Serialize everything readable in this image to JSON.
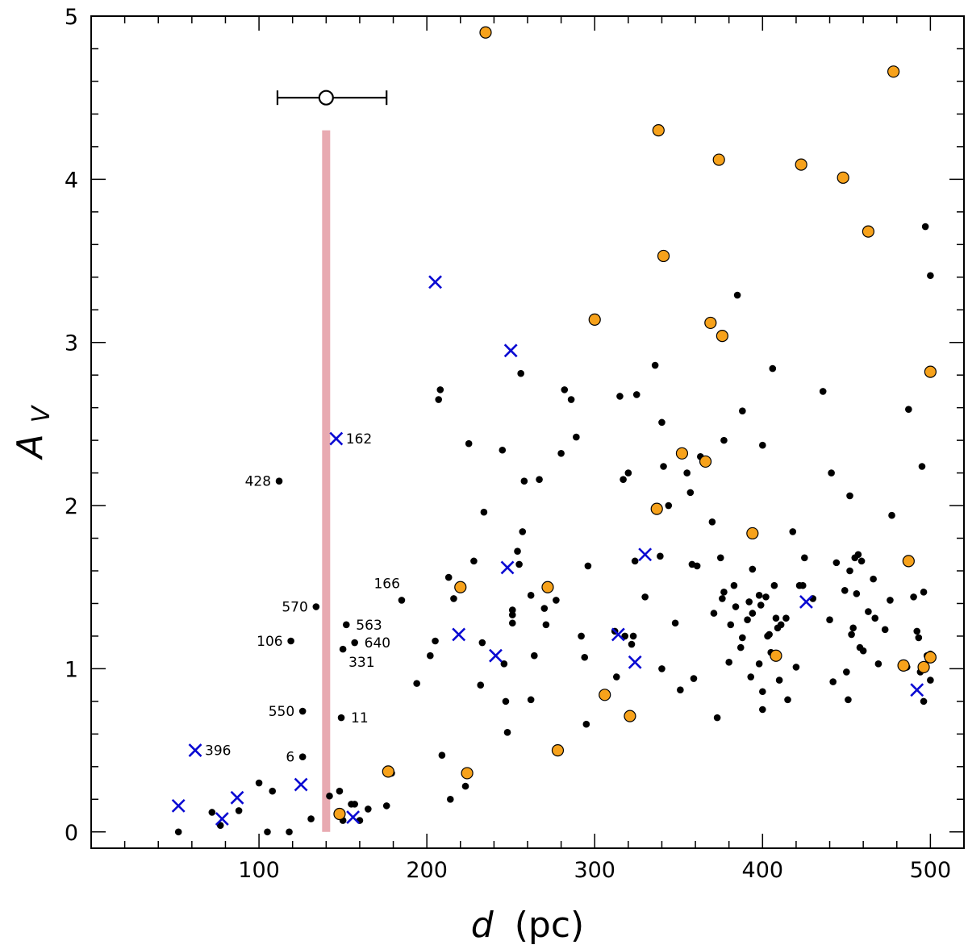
{
  "chart_data": {
    "type": "scatter",
    "title": "",
    "xlabel": {
      "symbol": "d",
      "unit": "(pc)"
    },
    "ylabel": {
      "symbol": "A",
      "subscript": "V"
    },
    "xlim": [
      0,
      520
    ],
    "ylim": [
      -0.1,
      5
    ],
    "xticks": [
      100,
      200,
      300,
      400,
      500
    ],
    "yticks": [
      0,
      1,
      2,
      3,
      4,
      5
    ],
    "xtick_labels": [
      "100",
      "200",
      "300",
      "400",
      "500"
    ],
    "ytick_labels": [
      "0",
      "1",
      "2",
      "3",
      "4",
      "5"
    ],
    "x_minor_step": 20,
    "y_minor_step": 0.2,
    "colors": {
      "black": "#000000",
      "orange": "#f7a21b",
      "blue": "#0a0ad2",
      "band": "#e8aab1"
    },
    "band": {
      "x": 140,
      "y_range": [
        0,
        4.3
      ]
    },
    "reference_point": {
      "x": 140,
      "y": 4.5,
      "xerr": [
        111,
        176
      ]
    },
    "series": [
      {
        "name": "black-dots",
        "marker": "dot",
        "points": [
          [
            52,
            0.0
          ],
          [
            72,
            0.12
          ],
          [
            77,
            0.04
          ],
          [
            88,
            0.13
          ],
          [
            100,
            0.3
          ],
          [
            105,
            0.0
          ],
          [
            108,
            0.25
          ],
          [
            112,
            2.15
          ],
          [
            118,
            0.0
          ],
          [
            119,
            1.17
          ],
          [
            126,
            0.74
          ],
          [
            126,
            0.46
          ],
          [
            131,
            0.08
          ],
          [
            134,
            1.38
          ],
          [
            142,
            0.22
          ],
          [
            148,
            0.25
          ],
          [
            149,
            0.7
          ],
          [
            150,
            0.07
          ],
          [
            150,
            1.12
          ],
          [
            152,
            1.27
          ],
          [
            155,
            0.17
          ],
          [
            157,
            1.16
          ],
          [
            157,
            0.17
          ],
          [
            160,
            0.07
          ],
          [
            165,
            0.14
          ],
          [
            176,
            0.16
          ],
          [
            179,
            0.36
          ],
          [
            185,
            1.42
          ],
          [
            194,
            0.91
          ],
          [
            202,
            1.08
          ],
          [
            205,
            1.17
          ],
          [
            207,
            2.65
          ],
          [
            208,
            2.71
          ],
          [
            209,
            0.47
          ],
          [
            213,
            1.56
          ],
          [
            214,
            0.2
          ],
          [
            216,
            1.43
          ],
          [
            223,
            0.28
          ],
          [
            225,
            2.38
          ],
          [
            228,
            1.66
          ],
          [
            232,
            0.9
          ],
          [
            233,
            1.16
          ],
          [
            234,
            1.96
          ],
          [
            245,
            2.34
          ],
          [
            246,
            1.03
          ],
          [
            247,
            0.8
          ],
          [
            248,
            0.61
          ],
          [
            251,
            1.33
          ],
          [
            251,
            1.36
          ],
          [
            251,
            1.28
          ],
          [
            254,
            1.72
          ],
          [
            255,
            1.64
          ],
          [
            256,
            2.81
          ],
          [
            257,
            1.84
          ],
          [
            258,
            2.15
          ],
          [
            262,
            0.81
          ],
          [
            262,
            1.45
          ],
          [
            264,
            1.08
          ],
          [
            267,
            2.16
          ],
          [
            270,
            1.37
          ],
          [
            271,
            1.27
          ],
          [
            277,
            1.42
          ],
          [
            280,
            2.32
          ],
          [
            282,
            2.71
          ],
          [
            286,
            2.65
          ],
          [
            289,
            2.42
          ],
          [
            292,
            1.2
          ],
          [
            294,
            1.07
          ],
          [
            295,
            0.66
          ],
          [
            296,
            1.63
          ],
          [
            312,
            1.23
          ],
          [
            313,
            0.95
          ],
          [
            315,
            2.67
          ],
          [
            317,
            2.16
          ],
          [
            318,
            1.2
          ],
          [
            320,
            2.2
          ],
          [
            322,
            1.15
          ],
          [
            323,
            1.2
          ],
          [
            324,
            1.66
          ],
          [
            325,
            2.68
          ],
          [
            330,
            1.44
          ],
          [
            336,
            2.86
          ],
          [
            339,
            1.69
          ],
          [
            340,
            2.51
          ],
          [
            340,
            1.0
          ],
          [
            341,
            2.24
          ],
          [
            344,
            2.0
          ],
          [
            348,
            1.28
          ],
          [
            351,
            0.87
          ],
          [
            355,
            2.2
          ],
          [
            357,
            2.08
          ],
          [
            358,
            1.64
          ],
          [
            359,
            0.94
          ],
          [
            361,
            1.63
          ],
          [
            363,
            2.3
          ],
          [
            370,
            1.9
          ],
          [
            371,
            1.34
          ],
          [
            373,
            0.7
          ],
          [
            375,
            1.68
          ],
          [
            376,
            1.43
          ],
          [
            377,
            1.47
          ],
          [
            377,
            2.4
          ],
          [
            380,
            1.04
          ],
          [
            381,
            1.27
          ],
          [
            383,
            1.51
          ],
          [
            384,
            1.38
          ],
          [
            385,
            3.29
          ],
          [
            387,
            1.13
          ],
          [
            388,
            1.19
          ],
          [
            388,
            2.58
          ],
          [
            391,
            1.3
          ],
          [
            392,
            1.41
          ],
          [
            393,
            0.95
          ],
          [
            394,
            1.61
          ],
          [
            394,
            1.34
          ],
          [
            398,
            1.45
          ],
          [
            398,
            1.03
          ],
          [
            399,
            1.39
          ],
          [
            400,
            0.75
          ],
          [
            400,
            2.37
          ],
          [
            400,
            0.86
          ],
          [
            402,
            1.44
          ],
          [
            403,
            1.2
          ],
          [
            404,
            1.21
          ],
          [
            405,
            1.1
          ],
          [
            406,
            2.84
          ],
          [
            407,
            1.51
          ],
          [
            408,
            1.31
          ],
          [
            409,
            1.25
          ],
          [
            410,
            0.93
          ],
          [
            411,
            1.27
          ],
          [
            414,
            1.31
          ],
          [
            415,
            0.81
          ],
          [
            418,
            1.84
          ],
          [
            420,
            1.01
          ],
          [
            422,
            1.51
          ],
          [
            424,
            1.51
          ],
          [
            425,
            1.68
          ],
          [
            430,
            1.43
          ],
          [
            436,
            2.7
          ],
          [
            440,
            1.3
          ],
          [
            441,
            2.2
          ],
          [
            442,
            0.92
          ],
          [
            444,
            1.65
          ],
          [
            449,
            1.48
          ],
          [
            450,
            0.98
          ],
          [
            451,
            0.81
          ],
          [
            452,
            2.06
          ],
          [
            452,
            1.6
          ],
          [
            453,
            1.21
          ],
          [
            454,
            1.25
          ],
          [
            455,
            1.68
          ],
          [
            456,
            1.46
          ],
          [
            457,
            1.7
          ],
          [
            458,
            1.13
          ],
          [
            459,
            1.66
          ],
          [
            460,
            1.11
          ],
          [
            463,
            1.35
          ],
          [
            466,
            1.55
          ],
          [
            467,
            1.31
          ],
          [
            469,
            1.03
          ],
          [
            473,
            1.24
          ],
          [
            476,
            1.42
          ],
          [
            477,
            1.94
          ],
          [
            484,
            1.01
          ],
          [
            486,
            1.01
          ],
          [
            487,
            2.59
          ],
          [
            490,
            1.44
          ],
          [
            492,
            1.23
          ],
          [
            493,
            1.19
          ],
          [
            494,
            0.98
          ],
          [
            495,
            2.24
          ],
          [
            496,
            1.47
          ],
          [
            496,
            0.8
          ],
          [
            497,
            3.71
          ],
          [
            498,
            1.08
          ],
          [
            500,
            1.09
          ],
          [
            500,
            3.41
          ],
          [
            500,
            0.93
          ]
        ]
      },
      {
        "name": "orange-circles",
        "marker": "circle",
        "points": [
          [
            148,
            0.11
          ],
          [
            177,
            0.37
          ],
          [
            220,
            1.5
          ],
          [
            224,
            0.36
          ],
          [
            235,
            4.9
          ],
          [
            272,
            1.5
          ],
          [
            278,
            0.5
          ],
          [
            300,
            3.14
          ],
          [
            306,
            0.84
          ],
          [
            321,
            0.71
          ],
          [
            337,
            1.98
          ],
          [
            338,
            4.3
          ],
          [
            341,
            3.53
          ],
          [
            352,
            2.32
          ],
          [
            366,
            2.27
          ],
          [
            369,
            3.12
          ],
          [
            374,
            4.12
          ],
          [
            376,
            3.04
          ],
          [
            394,
            1.83
          ],
          [
            408,
            1.08
          ],
          [
            423,
            4.09
          ],
          [
            448,
            4.01
          ],
          [
            463,
            3.68
          ],
          [
            478,
            4.66
          ],
          [
            484,
            1.02
          ],
          [
            487,
            1.66
          ],
          [
            496,
            1.01
          ],
          [
            500,
            2.82
          ],
          [
            500,
            1.07
          ]
        ]
      },
      {
        "name": "blue-crosses",
        "marker": "x",
        "points": [
          [
            52,
            0.16
          ],
          [
            62,
            0.5
          ],
          [
            78,
            0.08
          ],
          [
            87,
            0.21
          ],
          [
            125,
            0.29
          ],
          [
            146,
            2.41
          ],
          [
            156,
            0.09
          ],
          [
            205,
            3.37
          ],
          [
            219,
            1.21
          ],
          [
            241,
            1.08
          ],
          [
            248,
            1.62
          ],
          [
            250,
            2.95
          ],
          [
            314,
            1.21
          ],
          [
            324,
            1.04
          ],
          [
            330,
            1.7
          ],
          [
            426,
            1.41
          ],
          [
            492,
            0.87
          ]
        ]
      }
    ],
    "annotations": [
      {
        "text": "162",
        "x": 146,
        "y": 2.41,
        "pos": "right"
      },
      {
        "text": "428",
        "x": 112,
        "y": 2.15,
        "pos": "left"
      },
      {
        "text": "166",
        "x": 185,
        "y": 1.42,
        "pos": "upper-left"
      },
      {
        "text": "570",
        "x": 134,
        "y": 1.38,
        "pos": "left"
      },
      {
        "text": "563",
        "x": 152,
        "y": 1.27,
        "pos": "right"
      },
      {
        "text": "106",
        "x": 119,
        "y": 1.17,
        "pos": "left"
      },
      {
        "text": "640",
        "x": 157,
        "y": 1.16,
        "pos": "right"
      },
      {
        "text": "331",
        "x": 150,
        "y": 1.12,
        "pos": "lower-right"
      },
      {
        "text": "550",
        "x": 126,
        "y": 0.74,
        "pos": "left"
      },
      {
        "text": "11",
        "x": 149,
        "y": 0.7,
        "pos": "right"
      },
      {
        "text": "396",
        "x": 62,
        "y": 0.5,
        "pos": "right"
      },
      {
        "text": "6",
        "x": 126,
        "y": 0.46,
        "pos": "left"
      }
    ]
  }
}
